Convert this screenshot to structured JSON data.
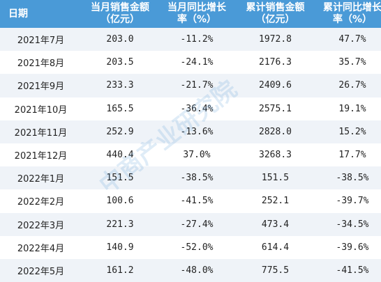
{
  "table": {
    "header": [
      [
        "日期"
      ],
      [
        "当月销售金额",
        "（亿元）"
      ],
      [
        "当月同比增长",
        "率（%）"
      ],
      [
        "累计销售金额",
        "（亿元）"
      ],
      [
        "累计同比增长",
        "率（%）"
      ]
    ],
    "rows": [
      [
        "2021年7月",
        "203.0",
        "-11.2%",
        "1972.8",
        "47.7%"
      ],
      [
        "2021年8月",
        "203.5",
        "-24.1%",
        "2176.3",
        "35.7%"
      ],
      [
        "2021年9月",
        "233.3",
        "-21.7%",
        "2409.6",
        "26.7%"
      ],
      [
        "2021年10月",
        "165.5",
        "-36.4%",
        "2575.1",
        "19.1%"
      ],
      [
        "2021年11月",
        "252.9",
        "-13.6%",
        "2828.0",
        "15.2%"
      ],
      [
        "2021年12月",
        "440.4",
        "37.0%",
        "3268.3",
        "17.7%"
      ],
      [
        "2022年1月",
        "151.5",
        "-38.5%",
        "151.5",
        "-38.5%"
      ],
      [
        "2022年2月",
        "100.6",
        "-41.5%",
        "252.1",
        "-39.7%"
      ],
      [
        "2022年3月",
        "221.3",
        "-27.4%",
        "473.4",
        "-34.5%"
      ],
      [
        "2022年4月",
        "140.9",
        "-52.0%",
        "614.4",
        "-39.6%"
      ],
      [
        "2022年5月",
        "161.2",
        "-48.0%",
        "775.5",
        "-41.5%"
      ]
    ]
  },
  "watermark": "中商产业研究院"
}
